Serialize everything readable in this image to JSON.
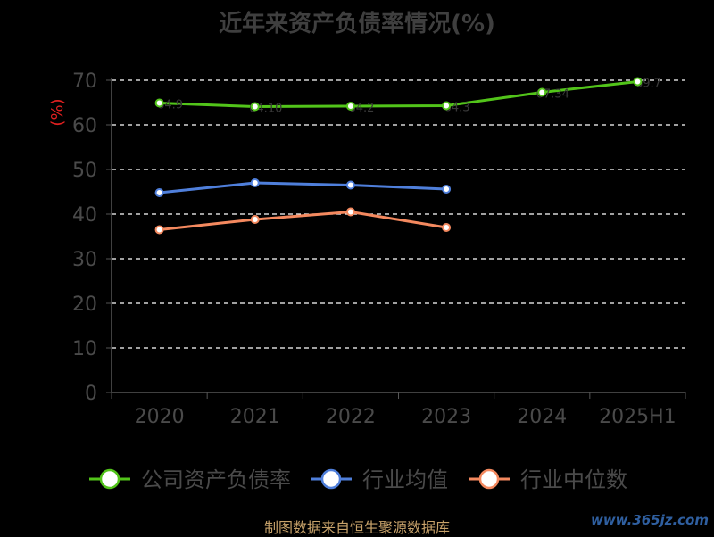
{
  "title": "近年来资产负债率情况(%)",
  "footer": "制图数据来自恒生聚源数据库",
  "watermark": "www.365jz.com",
  "chart_data": {
    "type": "line",
    "title": "近年来资产负债率情况(%)",
    "ylabel": "(%)",
    "ylabel_color": "#e02020",
    "categories": [
      "2020",
      "2021",
      "2022",
      "2023",
      "2024",
      "2025H1"
    ],
    "ylim": [
      0,
      70
    ],
    "yticks": [
      0,
      10,
      20,
      30,
      40,
      50,
      60,
      70
    ],
    "grid": true,
    "legend_position": "bottom",
    "series": [
      {
        "name": "公司资产负债率",
        "color": "#52c41a",
        "values": [
          64.9,
          64.1,
          64.2,
          64.3,
          67.3,
          69.7
        ],
        "labels": [
          "64.9",
          "64.10",
          "64.2",
          "64.3",
          "67.34",
          "69.7"
        ]
      },
      {
        "name": "行业均值",
        "color": "#4f7fdb",
        "values": [
          44.8,
          47.0,
          46.5,
          45.6,
          null,
          null
        ]
      },
      {
        "name": "行业中位数",
        "color": "#f4895f",
        "values": [
          36.5,
          38.8,
          40.5,
          37.0,
          null,
          null
        ]
      }
    ]
  }
}
